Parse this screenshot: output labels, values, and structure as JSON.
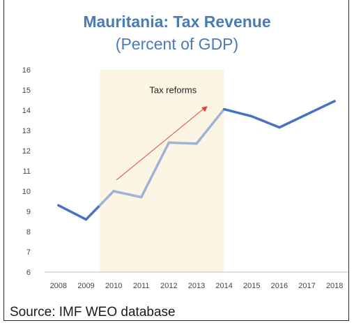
{
  "chart_data": {
    "type": "line",
    "title": "Mauritania: Tax Revenue",
    "subtitle": "(Percent of GDP)",
    "x": [
      "2008",
      "2009",
      "2010",
      "2011",
      "2012",
      "2013",
      "2014",
      "2015",
      "2016",
      "2017",
      "2018"
    ],
    "series": [
      {
        "values": [
          9.3,
          8.6,
          10.0,
          9.7,
          12.4,
          12.35,
          14.05,
          13.7,
          13.15,
          13.8,
          14.45
        ]
      }
    ],
    "ylim": [
      6,
      16
    ],
    "yticks": [
      6,
      7,
      8,
      9,
      10,
      11,
      12,
      13,
      14,
      15,
      16
    ],
    "grid": false,
    "annotation": {
      "text": "Tax reforms",
      "shaded_from": "2010",
      "shaded_to": "2014",
      "shade_color": "#fdf5e3",
      "arrow_color": "#e0443c"
    },
    "colors": {
      "main_line": "#4472c4",
      "reform_line": "#9fb3d6"
    },
    "source": "Source: IMF WEO database"
  }
}
